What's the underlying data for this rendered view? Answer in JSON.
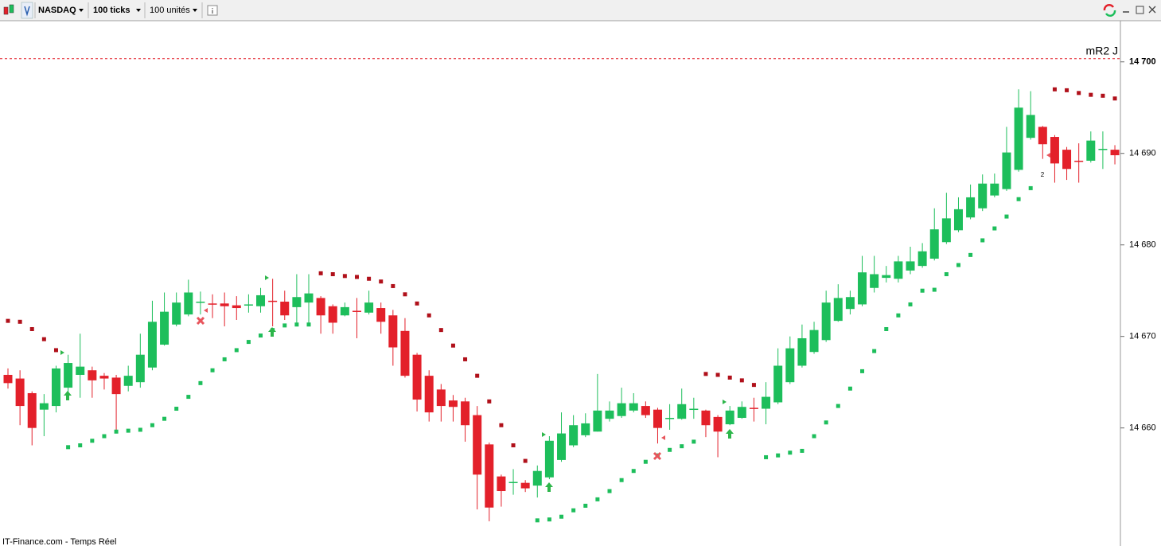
{
  "toolbar": {
    "symbol": "NASDAQ",
    "period": "100 ticks",
    "volume": "100 unités"
  },
  "chart_data": {
    "type": "candlestick",
    "open": [
      14665.8,
      14665.4,
      14663.8,
      14662.0,
      14662.4,
      14664.4,
      14665.8,
      14666.3,
      14665.7,
      14665.5,
      14664.6,
      14665.0,
      14666.6,
      14669.1,
      14671.3,
      14672.4,
      14673.7,
      14673.6,
      14673.6,
      14673.4,
      14673.4,
      14673.3,
      14673.9,
      14673.8,
      14673.2,
      14673.7,
      14674.2,
      14673.3,
      14672.3,
      14672.8,
      14672.6,
      14673.1,
      14672.3,
      14670.6,
      14668.0,
      14665.7,
      14664.2,
      14663.0,
      14662.9,
      14661.4,
      14658.2,
      14654.7,
      14654.0,
      14654.0,
      14653.7,
      14654.6,
      14656.5,
      14658.1,
      14659.2,
      14659.6,
      14661.0,
      14661.3,
      14661.9,
      14662.4,
      14662.0,
      14661.0,
      14661.0,
      14662.0,
      14661.9,
      14661.2,
      14660.4,
      14661.1,
      14662.2,
      14662.1,
      14662.8,
      14665.0,
      14666.8,
      14668.3,
      14669.6,
      14671.7,
      14673.0,
      14673.5,
      14675.3,
      14676.4,
      14676.3,
      14677.2,
      14677.7,
      14678.5,
      14680.3,
      14681.6,
      14683.0,
      14684.0,
      14685.4,
      14686.1,
      14688.2,
      14691.7,
      14692.9,
      14691.8,
      14690.4,
      14689.2,
      14689.2,
      14690.4,
      14690.4
    ],
    "high": [
      14666.5,
      14666.3,
      14664.0,
      14663.7,
      14666.8,
      14668.0,
      14670.3,
      14666.7,
      14666.0,
      14665.8,
      14666.8,
      14670.3,
      14673.9,
      14674.8,
      14674.8,
      14676.2,
      14674.9,
      14674.6,
      14674.8,
      14674.4,
      14674.6,
      14675.3,
      14676.3,
      14675.0,
      14676.8,
      14676.8,
      14674.4,
      14673.5,
      14673.7,
      14674.2,
      14675.0,
      14673.7,
      14672.9,
      14672.0,
      14668.2,
      14666.3,
      14664.8,
      14663.6,
      14663.3,
      14662.4,
      14658.4,
      14654.9,
      14655.5,
      14654.3,
      14655.9,
      14659.1,
      14661.7,
      14661.4,
      14661.6,
      14665.9,
      14662.9,
      14664.4,
      14663.8,
      14662.9,
      14662.2,
      14662.6,
      14664.3,
      14663.3,
      14662.0,
      14661.4,
      14662.4,
      14662.9,
      14663.3,
      14665.0,
      14668.7,
      14670.0,
      14671.3,
      14671.6,
      14675.0,
      14675.7,
      14675.0,
      14678.8,
      14678.8,
      14677.7,
      14678.8,
      14679.8,
      14680.2,
      14684.0,
      14685.7,
      14685.2,
      14686.6,
      14687.7,
      14687.8,
      14692.9,
      14697.0,
      14696.8,
      14693.0,
      14692.0,
      14690.7,
      14691.1,
      14692.4,
      14692.4,
      14690.9
    ],
    "low": [
      14664.3,
      14660.3,
      14658.1,
      14659.1,
      14661.7,
      14663.2,
      14663.3,
      14663.3,
      14664.2,
      14659.4,
      14664.0,
      14664.4,
      14666.3,
      14669.0,
      14671.1,
      14672.2,
      14672.4,
      14672.0,
      14671.1,
      14671.8,
      14672.6,
      14672.6,
      14671.1,
      14671.8,
      14671.1,
      14671.1,
      14670.3,
      14670.3,
      14672.2,
      14669.8,
      14672.4,
      14670.3,
      14666.8,
      14665.5,
      14661.8,
      14660.7,
      14660.7,
      14660.7,
      14658.5,
      14651.1,
      14649.8,
      14651.4,
      14652.7,
      14653.0,
      14652.4,
      14654.4,
      14656.3,
      14657.9,
      14659.0,
      14659.6,
      14660.7,
      14661.1,
      14661.7,
      14661.1,
      14658.3,
      14659.8,
      14660.9,
      14661.0,
      14659.0,
      14656.8,
      14660.3,
      14661.0,
      14660.7,
      14660.4,
      14662.6,
      14664.8,
      14666.6,
      14668.1,
      14669.4,
      14671.6,
      14672.4,
      14673.3,
      14674.8,
      14675.9,
      14675.9,
      14676.8,
      14677.5,
      14678.3,
      14680.1,
      14681.4,
      14682.8,
      14683.7,
      14685.2,
      14685.9,
      14688.0,
      14691.5,
      14689.4,
      14686.8,
      14687.1,
      14686.8,
      14689.0,
      14688.3,
      14688.8
    ],
    "close": [
      14664.9,
      14662.4,
      14660.0,
      14662.7,
      14666.5,
      14667.1,
      14666.7,
      14665.2,
      14665.4,
      14663.7,
      14665.7,
      14668.0,
      14671.6,
      14672.7,
      14673.7,
      14674.8,
      14673.8,
      14673.5,
      14673.3,
      14673.1,
      14673.5,
      14674.5,
      14673.8,
      14672.3,
      14674.3,
      14674.7,
      14672.3,
      14671.5,
      14673.2,
      14672.7,
      14673.7,
      14671.6,
      14668.8,
      14665.7,
      14663.1,
      14661.7,
      14662.4,
      14662.3,
      14660.3,
      14654.9,
      14651.3,
      14653.1,
      14654.1,
      14653.4,
      14655.3,
      14658.6,
      14659.4,
      14660.3,
      14660.5,
      14661.9,
      14661.9,
      14662.7,
      14662.7,
      14661.4,
      14660.0,
      14661.1,
      14662.6,
      14662.1,
      14660.3,
      14659.6,
      14661.9,
      14662.3,
      14662.1,
      14663.4,
      14666.8,
      14668.7,
      14669.8,
      14670.7,
      14673.7,
      14674.2,
      14674.3,
      14677.0,
      14676.8,
      14676.7,
      14678.2,
      14678.2,
      14679.3,
      14681.7,
      14682.9,
      14683.9,
      14685.2,
      14686.7,
      14686.7,
      14690.1,
      14695.0,
      14694.2,
      14691.0,
      14688.9,
      14688.3,
      14689.1,
      14691.4,
      14690.5,
      14689.8
    ],
    "sar": [
      14671.7,
      14671.6,
      14670.8,
      14669.7,
      14668.5,
      14657.9,
      14658.1,
      14658.6,
      14659.1,
      14659.6,
      14659.7,
      14659.8,
      14660.3,
      14661.0,
      14662.1,
      14663.4,
      14664.9,
      14666.3,
      14667.5,
      14668.5,
      14669.4,
      14670.1,
      14670.7,
      14671.2,
      14671.3,
      14671.3,
      14676.9,
      14676.8,
      14676.6,
      14676.5,
      14676.3,
      14676.0,
      14675.5,
      14674.6,
      14673.6,
      14672.3,
      14670.7,
      14669.0,
      14667.5,
      14665.7,
      14662.9,
      14660.3,
      14658.1,
      14656.4,
      14649.9,
      14650.0,
      14650.3,
      14651.0,
      14651.5,
      14652.2,
      14653.1,
      14654.3,
      14655.3,
      14656.3,
      14657.0,
      14657.6,
      14658.0,
      14658.5,
      14665.9,
      14665.8,
      14665.5,
      14665.2,
      14664.7,
      14656.8,
      14657.0,
      14657.3,
      14657.5,
      14659.1,
      14660.6,
      14662.4,
      14664.3,
      14666.2,
      14668.4,
      14670.8,
      14672.3,
      14673.5,
      14675.0,
      14675.1,
      14676.8,
      14677.8,
      14678.9,
      14680.5,
      14681.8,
      14683.1,
      14685.0,
      14686.2,
      null,
      14697.0,
      14696.9,
      14696.6,
      14696.4,
      14696.3,
      14696.0
    ],
    "colors": {
      "up": "#1dbe5b",
      "down": "#e3202a",
      "sar_up": "#1dbe5b",
      "sar_down": "#b0101a"
    },
    "ylim": [
      14647.1,
      14704.5
    ],
    "yticks": [
      {
        "value": 14660,
        "label": "14 660"
      },
      {
        "value": 14670,
        "label": "14 670"
      },
      {
        "value": 14680,
        "label": "14 680"
      },
      {
        "value": 14690,
        "label": "14 690"
      },
      {
        "value": 14700,
        "label": "14 700"
      }
    ],
    "reference_line": {
      "label": "mR2 J",
      "value": 14700.35,
      "color": "#e3202a"
    },
    "annotation": "2"
  },
  "footer": "IT-Finance.com - Temps Réel"
}
